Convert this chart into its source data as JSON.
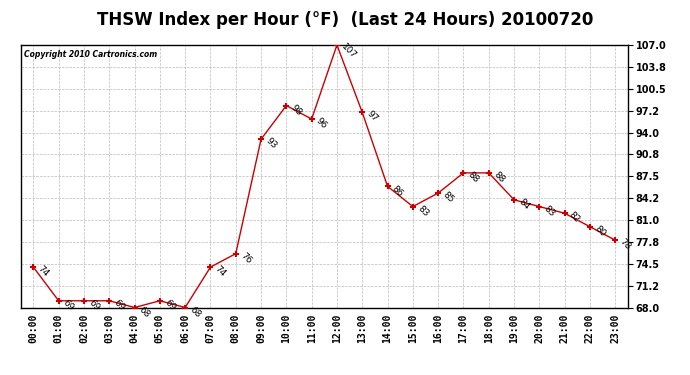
{
  "title": "THSW Index per Hour (°F)  (Last 24 Hours) 20100720",
  "copyright": "Copyright 2010 Cartronics.com",
  "hours": [
    "00:00",
    "01:00",
    "02:00",
    "03:00",
    "04:00",
    "05:00",
    "06:00",
    "07:00",
    "08:00",
    "09:00",
    "10:00",
    "11:00",
    "12:00",
    "13:00",
    "14:00",
    "15:00",
    "16:00",
    "17:00",
    "18:00",
    "19:00",
    "20:00",
    "21:00",
    "22:00",
    "23:00"
  ],
  "values": [
    74,
    69,
    69,
    69,
    68,
    69,
    68,
    74,
    76,
    93,
    98,
    96,
    107,
    97,
    86,
    83,
    85,
    88,
    88,
    84,
    83,
    82,
    80,
    78
  ],
  "last_point": 77,
  "ylim": [
    68.0,
    107.0
  ],
  "yticks": [
    68.0,
    71.2,
    74.5,
    77.8,
    81.0,
    84.2,
    87.5,
    90.8,
    94.0,
    97.2,
    100.5,
    103.8,
    107.0
  ],
  "line_color": "#cc0000",
  "marker_color": "#cc0000",
  "bg_color": "#ffffff",
  "grid_color": "#bbbbbb",
  "title_fontsize": 12,
  "tick_fontsize": 7,
  "label_fontsize": 6.5
}
